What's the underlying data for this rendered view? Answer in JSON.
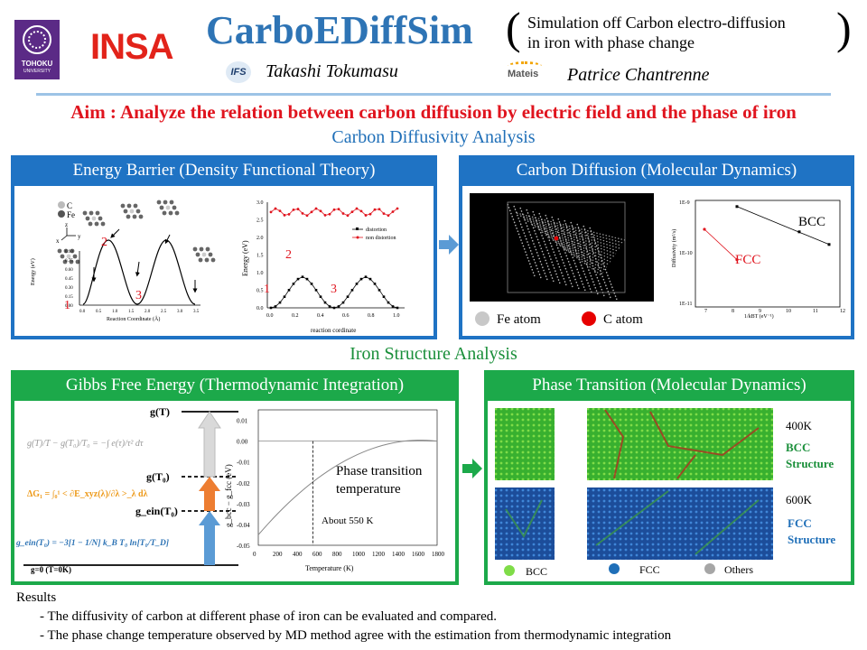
{
  "header": {
    "logo_left": "TOHOKU",
    "logo_left_sub": "UNIVERSITY",
    "logo_insa": "INSA",
    "title": "CarboEDiffSim",
    "subtitle_line1": "Simulation off Carbon electro-diffusion",
    "subtitle_line2": "in iron with phase change",
    "author1_logo": "IFS",
    "author1": "Takashi Tokumasu",
    "author2_logo": "Mateis",
    "author2": "Patrice Chantrenne"
  },
  "aim": "Aim : Analyze the relation between carbon diffusion by electric field and the phase of iron",
  "sections": {
    "carbon": "Carbon Diffusivity Analysis",
    "iron": "Iron Structure Analysis"
  },
  "panels": {
    "energy_barrier": {
      "title": "Energy Barrier (Density Functional Theory)",
      "legend_c": "C",
      "legend_fe": "Fe",
      "axis_z": "z",
      "axis_x": "x",
      "axis_y": "y",
      "left_ylabel": "Energy (eV)",
      "left_xlabel": "Reaction Coordinate (Å)",
      "left_yticks": [
        "0.90",
        "0.75",
        "0.60",
        "0.45",
        "0.30",
        "0.15",
        "0.00"
      ],
      "left_xticks": [
        "0.0",
        "0.5",
        "1.0",
        "1.5",
        "2.0",
        "2.5",
        "3.0",
        "3.5"
      ],
      "right_ylabel": "Energy (eV)",
      "right_xlabel": "reaction cordinate",
      "right_yticks": [
        "3.0",
        "2.5",
        "2.0",
        "1.5",
        "1.0",
        "0.5",
        "0.0"
      ],
      "right_xticks": [
        "0.0",
        "0.2",
        "0.4",
        "0.6",
        "0.8",
        "1.0"
      ],
      "legend_distortion": "distortion",
      "legend_non_distortion": "non distortion",
      "markers": [
        "1",
        "2",
        "3"
      ]
    },
    "carbon_diffusion": {
      "title": "Carbon Diffusion (Molecular Dynamics)",
      "fe_atom": "Fe atom",
      "c_atom": "C atom",
      "bcc": "BCC",
      "fcc": "FCC",
      "yticks": [
        "1E-9",
        "1E-10",
        "1E-11"
      ],
      "xticks": [
        "7",
        "8",
        "9",
        "10",
        "11",
        "12"
      ],
      "ylabel": "Diffusivity (m²/s)",
      "xlabel": "1/kBT (eV⁻¹)"
    },
    "gibbs": {
      "title": "Gibbs Free Energy (Thermodynamic  Integration)",
      "g_T": "g(T)",
      "g_T0": "g(T₀)",
      "g_ein": "g_ein(T₀)",
      "g_zero": "g=0 (T=0K)",
      "eq1": "g(T)/T − g(T₀)/T₀ = −∫ e(τ)/τ² dτ",
      "eq2": "ΔG₁ = ∫₀¹ < ∂E_xyz(λ)/∂λ >_λ dλ",
      "eq3": "g_ein(T₀) = −3[1 − 1/N] k_B T₀ ln[T₀/T_D]",
      "ylabel": "g_bcc − g_fcc (eV)",
      "xlabel": "Temperature (K)",
      "yticks": [
        "0.01",
        "0.00",
        "-0.01",
        "-0.02",
        "-0.03",
        "-0.04",
        "-0.05"
      ],
      "xticks": [
        "0",
        "200",
        "400",
        "600",
        "800",
        "1000",
        "1200",
        "1400",
        "1600",
        "1800"
      ],
      "annotation_line1": "Phase transition",
      "annotation_line2": "temperature",
      "about": "About 550 K"
    },
    "phase_transition": {
      "title": "Phase Transition (Molecular Dynamics)",
      "t400": "400K",
      "bcc_structure_1": "BCC",
      "bcc_structure_2": "Structure",
      "t600": "600K",
      "fcc_structure_1": "FCC",
      "fcc_structure_2": "Structure",
      "legend_bcc": "BCC",
      "legend_fcc": "FCC",
      "legend_others": "Others"
    }
  },
  "results": {
    "heading": "Results",
    "items": [
      "- The diffusivity of carbon at different phase of iron can be evaluated and compared.",
      "- The phase change temperature observed by MD method agree with the estimation from thermodynamic integration"
    ]
  },
  "colors": {
    "title_blue": "#2e74b5",
    "aim_red": "#e0141e",
    "panel_blue": "#1f73c4",
    "panel_green": "#1ca94a",
    "bcc_green": "#1a8f3a",
    "fcc_blue": "#1f6fb8"
  }
}
